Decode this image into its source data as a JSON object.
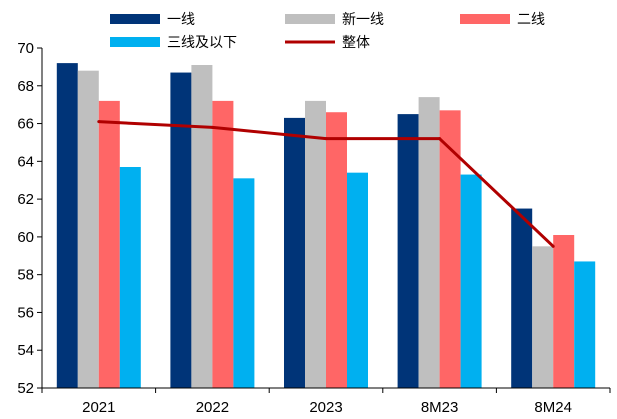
{
  "chart_data": {
    "type": "bar",
    "categories": [
      "2021",
      "2022",
      "2023",
      "8M23",
      "8M24"
    ],
    "series": [
      {
        "name": "一线",
        "type": "bar",
        "color": "#003478",
        "values": [
          69.2,
          68.7,
          66.3,
          66.5,
          61.5
        ]
      },
      {
        "name": "新一线",
        "type": "bar",
        "color": "#BFBFBF",
        "values": [
          68.8,
          69.1,
          67.2,
          67.4,
          59.5
        ]
      },
      {
        "name": "二线",
        "type": "bar",
        "color": "#FF6666",
        "values": [
          67.2,
          67.2,
          66.6,
          66.7,
          60.1
        ]
      },
      {
        "name": "三线及以下",
        "type": "bar",
        "color": "#00B0F0",
        "values": [
          63.7,
          63.1,
          63.4,
          63.3,
          58.7
        ]
      },
      {
        "name": "整体",
        "type": "line",
        "color": "#B00000",
        "values": [
          66.1,
          65.8,
          65.2,
          65.2,
          59.5
        ]
      }
    ],
    "ylim": [
      52,
      70
    ],
    "yticks": [
      52,
      54,
      56,
      58,
      60,
      62,
      64,
      66,
      68,
      70
    ],
    "ytick_labels": [
      "52",
      "54",
      "56",
      "58",
      "60",
      "62",
      "64",
      "66",
      "68",
      "70"
    ],
    "legend_position": "top",
    "grid": false
  }
}
